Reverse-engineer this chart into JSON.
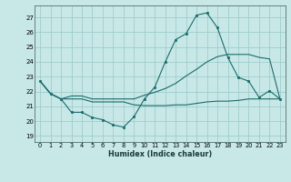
{
  "xlabel": "Humidex (Indice chaleur)",
  "background_color": "#c8e8e8",
  "grid_color": "#a0cccc",
  "line_color": "#1a6b6b",
  "xlim": [
    -0.5,
    23.5
  ],
  "ylim": [
    18.6,
    27.8
  ],
  "yticks": [
    19,
    20,
    21,
    22,
    23,
    24,
    25,
    26,
    27
  ],
  "xticks": [
    0,
    1,
    2,
    3,
    4,
    5,
    6,
    7,
    8,
    9,
    10,
    11,
    12,
    13,
    14,
    15,
    16,
    17,
    18,
    19,
    20,
    21,
    22,
    23
  ],
  "line1_y": [
    22.7,
    21.85,
    21.5,
    20.6,
    20.6,
    20.25,
    20.1,
    19.75,
    19.6,
    20.3,
    21.5,
    22.3,
    24.0,
    25.5,
    25.9,
    27.15,
    27.3,
    26.3,
    24.3,
    22.95,
    22.7,
    21.6,
    22.05,
    21.5
  ],
  "line2_y": [
    22.7,
    21.85,
    21.5,
    21.7,
    21.7,
    21.5,
    21.5,
    21.5,
    21.5,
    21.5,
    21.75,
    21.95,
    22.2,
    22.55,
    23.05,
    23.5,
    24.0,
    24.35,
    24.5,
    24.5,
    24.5,
    24.3,
    24.2,
    21.5
  ],
  "line3_y": [
    22.7,
    21.85,
    21.5,
    21.5,
    21.5,
    21.3,
    21.3,
    21.3,
    21.3,
    21.1,
    21.05,
    21.05,
    21.05,
    21.1,
    21.1,
    21.2,
    21.3,
    21.35,
    21.35,
    21.4,
    21.5,
    21.5,
    21.5,
    21.5
  ],
  "marker_indices": [
    0,
    1,
    2,
    3,
    4,
    5,
    6,
    7,
    8,
    9,
    10,
    11,
    12,
    13,
    14,
    15,
    16,
    17,
    18,
    19,
    20,
    21,
    22,
    23
  ],
  "figsize": [
    3.2,
    2.0
  ],
  "dpi": 100
}
